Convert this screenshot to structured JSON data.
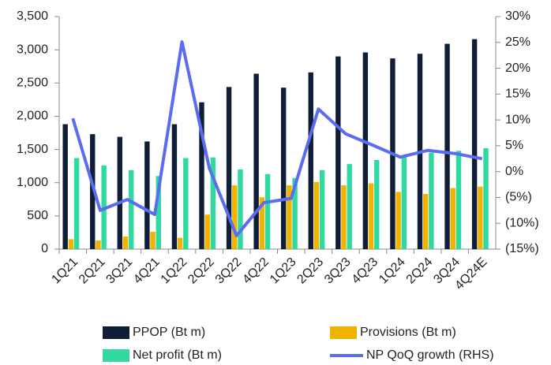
{
  "chart_data": {
    "type": "bar_line",
    "categories": [
      "1Q21",
      "2Q21",
      "3Q21",
      "4Q21",
      "1Q22",
      "2Q22",
      "3Q22",
      "4Q22",
      "1Q23",
      "2Q23",
      "3Q23",
      "4Q23",
      "1Q24",
      "2Q24",
      "3Q24",
      "4Q24E"
    ],
    "series": [
      {
        "name": "PPOP (Bt m)",
        "color": "#0f1d36",
        "type": "bar",
        "values": [
          1880,
          1730,
          1690,
          1620,
          1880,
          2210,
          2440,
          2640,
          2430,
          2660,
          2900,
          2960,
          2870,
          2940,
          3090,
          3160
        ]
      },
      {
        "name": "Provisions  (Bt m)",
        "color": "#f0b400",
        "type": "bar",
        "values": [
          150,
          130,
          190,
          260,
          170,
          520,
          960,
          780,
          960,
          1010,
          960,
          990,
          860,
          830,
          920,
          940
        ]
      },
      {
        "name": "Net profit  (Bt m)",
        "color": "#2fd9a0",
        "type": "bar",
        "values": [
          1370,
          1260,
          1190,
          1100,
          1370,
          1380,
          1200,
          1130,
          1070,
          1190,
          1280,
          1340,
          1400,
          1450,
          1480,
          1520
        ]
      },
      {
        "name": "NP QoQ growth (RHS)",
        "color": "#5b6cf0",
        "type": "line",
        "axis": "y2",
        "values": [
          10.3,
          -7.5,
          -5.4,
          -8.3,
          25.1,
          0.7,
          -12.4,
          -6.0,
          -5.2,
          12.1,
          7.3,
          5.1,
          2.8,
          4.1,
          3.5,
          2.5
        ]
      }
    ],
    "ylim": [
      0,
      3500
    ],
    "yticks": [
      0,
      500,
      {
        "value": 1000,
        "label": "1,000"
      },
      {
        "value": 1500,
        "label": "1,500"
      },
      {
        "value": 2000,
        "label": "2,000"
      },
      {
        "value": 2500,
        "label": "2,500"
      },
      {
        "value": 3000,
        "label": "3,000"
      },
      {
        "value": 3500,
        "label": "3,500"
      }
    ],
    "y2lim": [
      -15,
      30
    ],
    "y2ticks": [
      {
        "value": -15,
        "label": "(15%)"
      },
      {
        "value": -10,
        "label": "(10%)"
      },
      {
        "value": -5,
        "label": "(5%)"
      },
      {
        "value": 0,
        "label": "0%"
      },
      {
        "value": 5,
        "label": "5%"
      },
      {
        "value": 10,
        "label": "10%"
      },
      {
        "value": 15,
        "label": "15%"
      },
      {
        "value": 20,
        "label": "20%"
      },
      {
        "value": 25,
        "label": "25%"
      },
      {
        "value": 30,
        "label": "30%"
      }
    ],
    "legend": "bottom"
  }
}
